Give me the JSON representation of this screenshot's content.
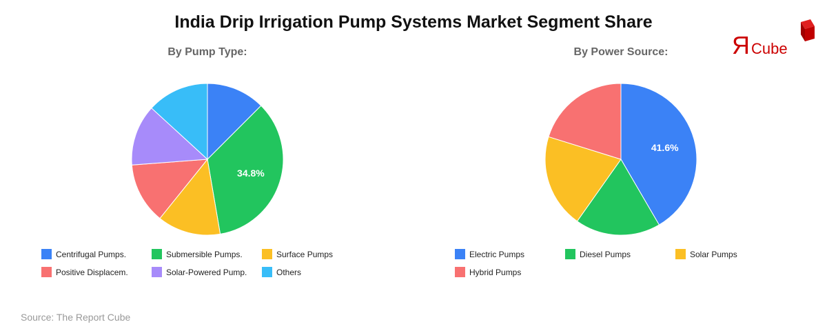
{
  "title": "India Drip Irrigation Pump Systems Market Segment Share",
  "source": "Source: The Report Cube",
  "logo": {
    "glyph": "Я",
    "text": "Cube",
    "color": "#cc0000"
  },
  "chart_data": [
    {
      "type": "pie",
      "title": "By Pump Type:",
      "categories": [
        "Centrifugal Pumps.",
        "Submersible Pumps.",
        "Surface Pumps",
        "Positive Displacem.",
        "Solar-Powered Pump.",
        "Others"
      ],
      "values": [
        12.5,
        34.8,
        13.5,
        13.0,
        13.0,
        13.2
      ],
      "colors": [
        "#3b82f6",
        "#22c55e",
        "#fbbf24",
        "#f87171",
        "#a78bfa",
        "#38bdf8"
      ],
      "labels_shown": {
        "1": "34.8%"
      },
      "legend_position": "bottom"
    },
    {
      "type": "pie",
      "title": "By Power Source:",
      "categories": [
        "Electric Pumps",
        "Diesel Pumps",
        "Solar Pumps",
        "Hybrid Pumps"
      ],
      "values": [
        41.6,
        18.2,
        20.0,
        20.2
      ],
      "colors": [
        "#3b82f6",
        "#22c55e",
        "#fbbf24",
        "#f87171"
      ],
      "labels_shown": {
        "0": "41.6%"
      },
      "legend_position": "bottom"
    }
  ]
}
